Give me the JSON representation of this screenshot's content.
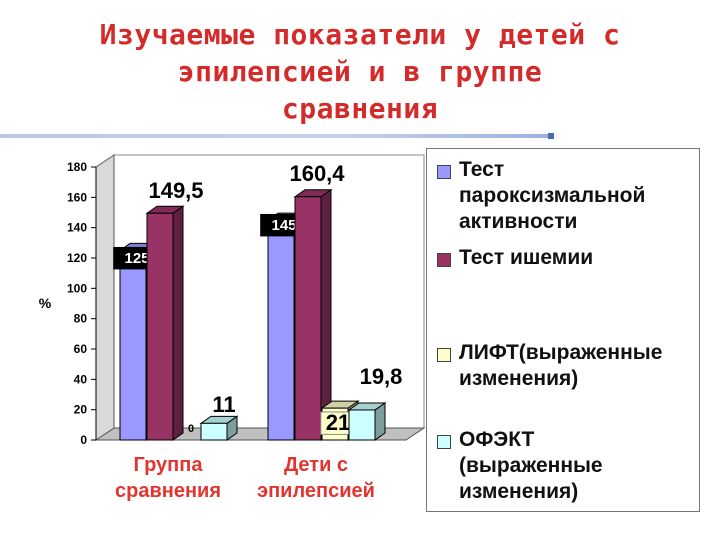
{
  "slide": {
    "title_lines": [
      "Изучаемые показатели у детей с",
      "эпилепсией и в группе",
      "сравнения"
    ]
  },
  "chart_data": {
    "type": "bar",
    "categories": [
      "Группа сравнения",
      "Дети с эпилепсией"
    ],
    "category_lines": [
      [
        "Группа",
        "сравнения"
      ],
      [
        "Дети с",
        "эпилепсией"
      ]
    ],
    "ylabel": "%",
    "ylim": [
      0,
      180
    ],
    "yticks": [
      "0",
      "20",
      "40",
      "60",
      "80",
      "100",
      "120",
      "140",
      "160",
      "180"
    ],
    "series": [
      {
        "name": "Тест пароксизмальной активности",
        "legend_lines": [
          "Тест",
          "пароксизмальной",
          "активности"
        ],
        "color": "#9999ff",
        "values": [
          125,
          145
        ],
        "labels": [
          "125",
          "145"
        ]
      },
      {
        "name": "Тест ишемии",
        "legend_lines": [
          "Тест ишемии"
        ],
        "color": "#993366",
        "values": [
          149.5,
          160.4
        ],
        "labels": [
          "149,5",
          "160,4"
        ]
      },
      {
        "name": "ЛИФТ(выраженные изменения)",
        "legend_lines": [
          "ЛИФТ(выраженные",
          "изменения)"
        ],
        "color": "#ffffcc",
        "values": [
          0,
          21
        ],
        "labels": [
          "0",
          "21"
        ]
      },
      {
        "name": "ОФЭКТ (выраженные изменения)",
        "legend_lines": [
          "ОФЭКТ",
          "(выраженные",
          "изменения)"
        ],
        "color": "#ccffff",
        "values": [
          11,
          19.8
        ],
        "labels": [
          "11",
          "19,8"
        ]
      }
    ],
    "legend_position": "right",
    "grid": false,
    "category_label_color": "#e3342f"
  }
}
